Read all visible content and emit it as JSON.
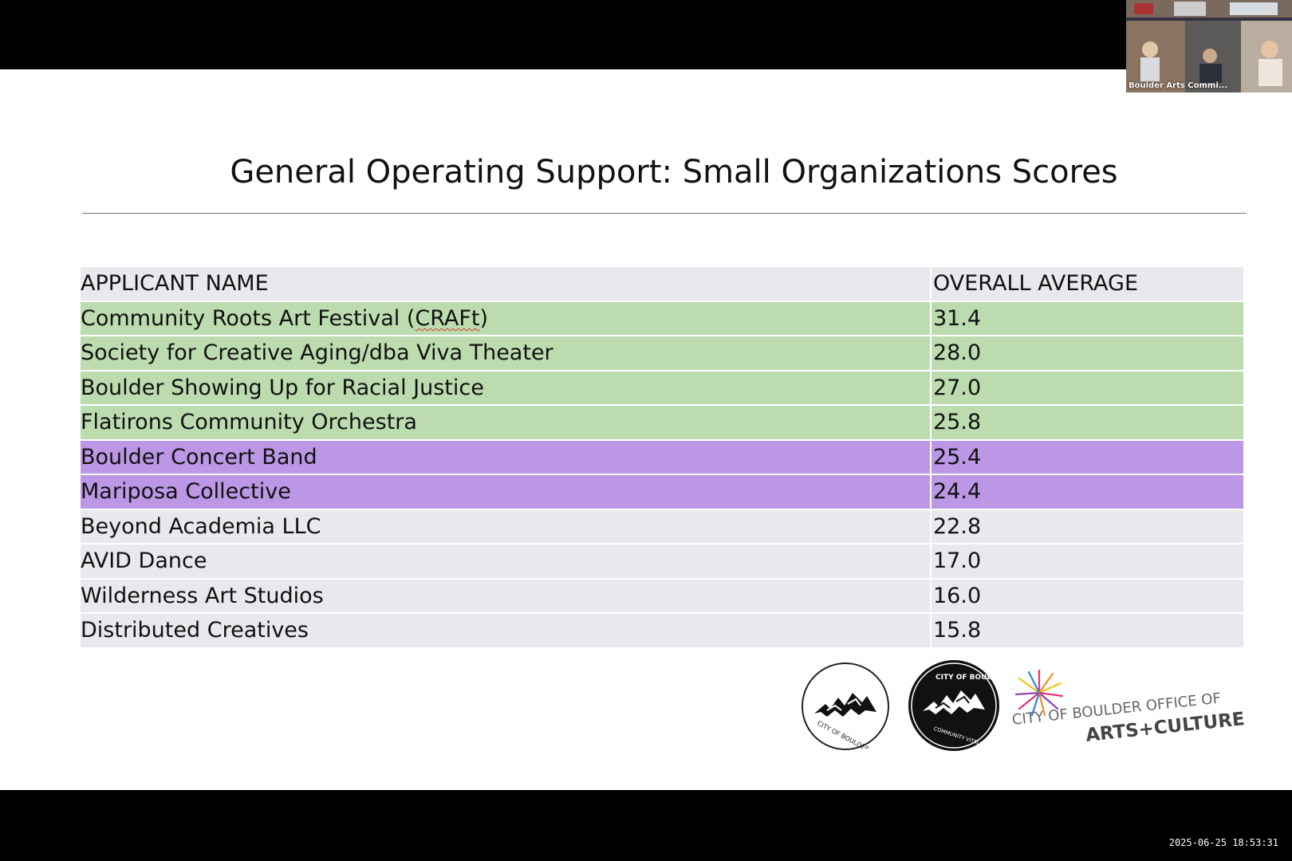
{
  "slide": {
    "title": "General Operating Support: Small Organizations Scores",
    "table": {
      "headers": [
        "APPLICANT NAME",
        "OVERALL AVERAGE"
      ],
      "rows": [
        {
          "name": "Community Roots Art Festival (",
          "name_flagged": "CRAFt",
          "name_suffix": ")",
          "score": "31.4"
        },
        {
          "name": "Society for Creative Aging/dba Viva Theater",
          "score": "28.0"
        },
        {
          "name": "Boulder Showing Up for Racial Justice",
          "score": "27.0"
        },
        {
          "name": "Flatirons Community Orchestra",
          "score": "25.8"
        },
        {
          "name": "Boulder Concert Band",
          "score": "25.4"
        },
        {
          "name": "Mariposa Collective",
          "score": "24.4"
        },
        {
          "name": "Beyond Academia LLC",
          "score": "22.8"
        },
        {
          "name": "AVID Dance",
          "score": "17.0"
        },
        {
          "name": "Wilderness Art Studios",
          "score": "16.0"
        },
        {
          "name": "Distributed Creatives",
          "score": "15.8"
        }
      ],
      "row_colors": {
        "green": "#bcdcaf",
        "purple": "#bb97e5",
        "grey": "#e9e8ec"
      }
    },
    "logos": {
      "city_logo_text": "CITY OF BOULDER",
      "community_logo_top": "CITY OF BOULDER",
      "community_logo_bottom": "COMMUNITY VITALITY",
      "office_line": "CITY OF BOULDER OFFICE OF",
      "arts_line": "ARTS+CULTURE"
    }
  },
  "video": {
    "label": "Boulder Arts Commi..."
  },
  "timestamp": "2025-06-25  18:53:31"
}
